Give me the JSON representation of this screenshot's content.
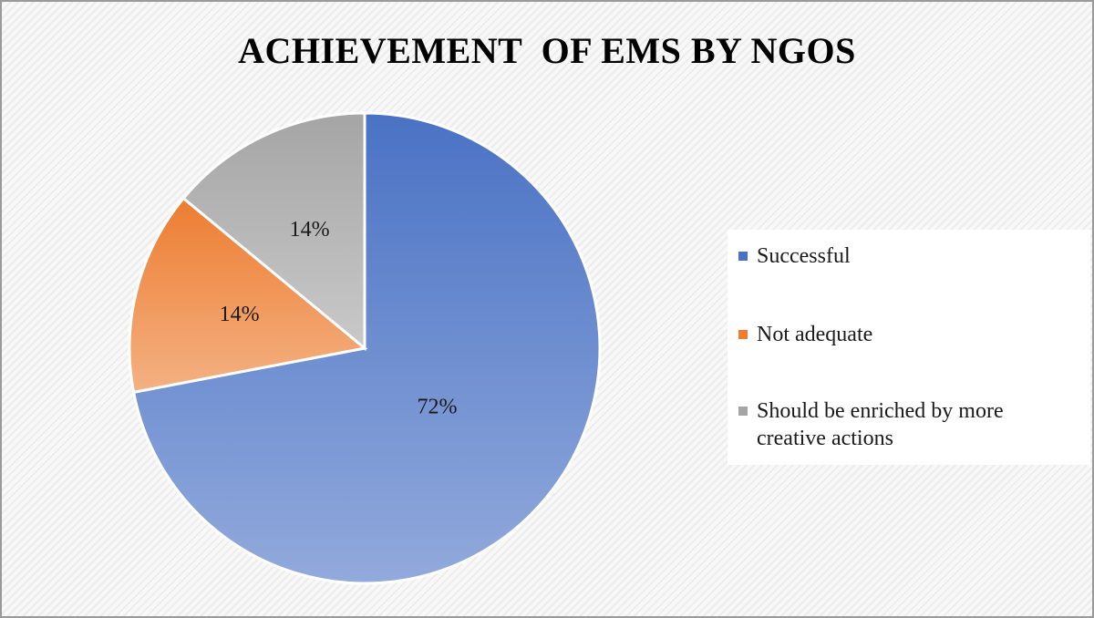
{
  "chart_data": {
    "type": "pie",
    "title": "ACHIEVEMENT  OF EMS BY NGOS",
    "categories": [
      "Successful",
      "Not adequate",
      "Should be enriched by more creative actions"
    ],
    "values": [
      72,
      14,
      14
    ],
    "data_labels": [
      "72%",
      "14%",
      "14%"
    ],
    "colors": [
      "#4a72c4",
      "#ed7d31",
      "#a5a5a5"
    ],
    "legend_position": "right",
    "start_angle": "12 o'clock, clockwise"
  }
}
